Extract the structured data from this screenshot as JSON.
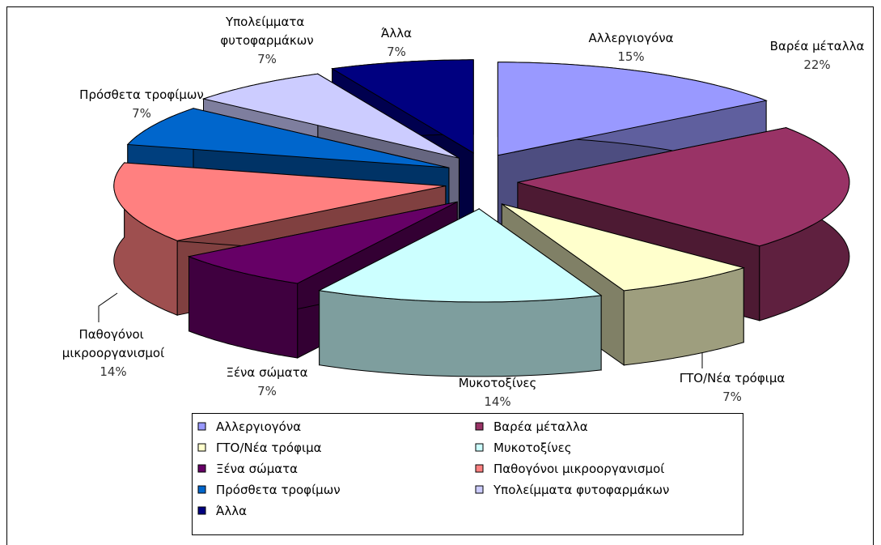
{
  "chart_data": {
    "type": "pie",
    "categories": [
      "Αλλεργιογόνα",
      "Βαρέα μέταλλα",
      "ΓΤΟ/Νέα τρόφιμα",
      "Μυκοτοξίνες",
      "Ξένα σώματα",
      "Παθογόνοι μικροοργανισμοί",
      "Πρόσθετα τροφίμων",
      "Υπολείμματα φυτοφαρμάκων",
      "Άλλα"
    ],
    "values": [
      15,
      22,
      7,
      14,
      7,
      14,
      7,
      7,
      7
    ],
    "value_labels": [
      "15%",
      "22%",
      "7%",
      "14%",
      "7%",
      "14%",
      "7%",
      "7%",
      "7%"
    ],
    "colors": [
      "#9999ff",
      "#993366",
      "#ffffcc",
      "#ccffff",
      "#660066",
      "#ff8080",
      "#0066cc",
      "#ccccff",
      "#000080"
    ],
    "legend": true
  }
}
